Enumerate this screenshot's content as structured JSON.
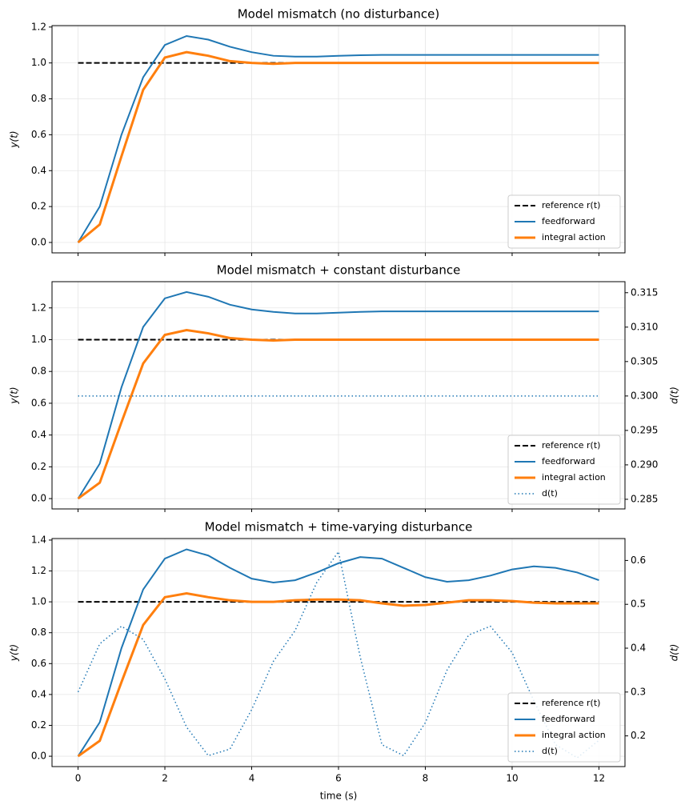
{
  "chart_data": [
    {
      "type": "line",
      "title": "Model mismatch (no disturbance)",
      "ylabel": "y(t)",
      "grid": true,
      "legend": "lower right",
      "x": [
        0,
        0.5,
        1,
        1.5,
        2,
        2.5,
        3,
        3.5,
        4,
        4.5,
        5,
        5.5,
        6,
        6.5,
        7,
        7.5,
        8,
        8.5,
        9,
        9.5,
        10,
        10.5,
        11,
        11.5,
        12
      ],
      "xlim": [
        -0.6,
        12.6
      ],
      "xticks": [
        0,
        2,
        4,
        6,
        8,
        10,
        12
      ],
      "ylim": [
        -0.058,
        1.208
      ],
      "yticks": [
        {
          "value": 0,
          "label": "0.0"
        },
        0.2,
        0.4,
        0.6,
        0.8,
        {
          "value": 1,
          "label": "1.0"
        },
        1.2
      ],
      "series": [
        {
          "name": "reference r(t)",
          "color": "#000000",
          "linestyle": "dashed",
          "linewidth": 2,
          "values": [
            1,
            1,
            1,
            1,
            1,
            1,
            1,
            1,
            1,
            1,
            1,
            1,
            1,
            1,
            1,
            1,
            1,
            1,
            1,
            1,
            1,
            1,
            1,
            1,
            1
          ]
        },
        {
          "name": "feedforward",
          "color": "#1f77b4",
          "linestyle": "solid",
          "linewidth": 2,
          "values": [
            0,
            0.2,
            0.6,
            0.92,
            1.1,
            1.15,
            1.13,
            1.09,
            1.06,
            1.04,
            1.035,
            1.035,
            1.04,
            1.043,
            1.045,
            1.045,
            1.045,
            1.045,
            1.045,
            1.045,
            1.045,
            1.045,
            1.045,
            1.045,
            1.045
          ]
        },
        {
          "name": "integral action",
          "color": "#ff7f0e",
          "linestyle": "solid",
          "linewidth": 3,
          "values": [
            0,
            0.1,
            0.48,
            0.85,
            1.03,
            1.06,
            1.04,
            1.01,
            1.0,
            0.995,
            1,
            1,
            1,
            1,
            1,
            1,
            1,
            1,
            1,
            1,
            1,
            1,
            1,
            1,
            1
          ]
        }
      ]
    },
    {
      "type": "line",
      "title": "Model mismatch + constant disturbance",
      "ylabel": "y(t)",
      "y2label": "d(t)",
      "grid": true,
      "legend": "lower right",
      "x": [
        0,
        0.5,
        1,
        1.5,
        2,
        2.5,
        3,
        3.5,
        4,
        4.5,
        5,
        5.5,
        6,
        6.5,
        7,
        7.5,
        8,
        8.5,
        9,
        9.5,
        10,
        10.5,
        11,
        11.5,
        12
      ],
      "xlim": [
        -0.6,
        12.6
      ],
      "xticks": [
        0,
        2,
        4,
        6,
        8,
        10,
        12
      ],
      "ylim": [
        -0.065,
        1.365
      ],
      "yticks": [
        {
          "value": 0,
          "label": "0.0"
        },
        0.2,
        0.4,
        0.6,
        0.8,
        {
          "value": 1,
          "label": "1.0"
        },
        1.2
      ],
      "y2lim": [
        0.2836,
        0.3166
      ],
      "y2ticks": [
        0.285,
        {
          "value": 0.29,
          "label": "0.290"
        },
        0.295,
        {
          "value": 0.3,
          "label": "0.300"
        },
        0.305,
        {
          "value": 0.31,
          "label": "0.310"
        },
        0.315
      ],
      "series": [
        {
          "name": "reference r(t)",
          "color": "#000000",
          "linestyle": "dashed",
          "linewidth": 2,
          "values": [
            1,
            1,
            1,
            1,
            1,
            1,
            1,
            1,
            1,
            1,
            1,
            1,
            1,
            1,
            1,
            1,
            1,
            1,
            1,
            1,
            1,
            1,
            1,
            1,
            1
          ]
        },
        {
          "name": "feedforward",
          "color": "#1f77b4",
          "linestyle": "solid",
          "linewidth": 2,
          "values": [
            0,
            0.22,
            0.7,
            1.08,
            1.26,
            1.3,
            1.27,
            1.22,
            1.19,
            1.175,
            1.165,
            1.165,
            1.17,
            1.175,
            1.178,
            1.178,
            1.178,
            1.178,
            1.178,
            1.178,
            1.178,
            1.178,
            1.178,
            1.178,
            1.178
          ]
        },
        {
          "name": "integral action",
          "color": "#ff7f0e",
          "linestyle": "solid",
          "linewidth": 3,
          "values": [
            0,
            0.1,
            0.48,
            0.85,
            1.03,
            1.06,
            1.04,
            1.01,
            1.0,
            0.995,
            1,
            1,
            1,
            1,
            1,
            1,
            1,
            1,
            1,
            1,
            1,
            1,
            1,
            1,
            1
          ]
        },
        {
          "name": "d(t)",
          "color": "#1f77b4",
          "linestyle": "dotted",
          "linewidth": 1.5,
          "axis": "y2",
          "values": [
            0.3,
            0.3,
            0.3,
            0.3,
            0.3,
            0.3,
            0.3,
            0.3,
            0.3,
            0.3,
            0.3,
            0.3,
            0.3,
            0.3,
            0.3,
            0.3,
            0.3,
            0.3,
            0.3,
            0.3,
            0.3,
            0.3,
            0.3,
            0.3,
            0.3
          ]
        }
      ]
    },
    {
      "type": "line",
      "title": "Model mismatch + time-varying disturbance",
      "xlabel": "time (s)",
      "ylabel": "y(t)",
      "y2label": "d(t)",
      "grid": true,
      "legend": "lower right",
      "x": [
        0,
        0.5,
        1,
        1.5,
        2,
        2.5,
        3,
        3.5,
        4,
        4.5,
        5,
        5.5,
        6,
        6.5,
        7,
        7.5,
        8,
        8.5,
        9,
        9.5,
        10,
        10.5,
        11,
        11.5,
        12
      ],
      "xlim": [
        -0.6,
        12.6
      ],
      "xticks": [
        0,
        2,
        4,
        6,
        8,
        10,
        12
      ],
      "ylim": [
        -0.067,
        1.41
      ],
      "yticks": [
        {
          "value": 0,
          "label": "0.0"
        },
        0.2,
        0.4,
        0.6,
        0.8,
        {
          "value": 1,
          "label": "1.0"
        },
        1.2,
        1.4
      ],
      "y2lim": [
        0.13,
        0.65
      ],
      "y2ticks": [
        0.2,
        0.3,
        0.4,
        0.5,
        0.6
      ],
      "series": [
        {
          "name": "reference r(t)",
          "color": "#000000",
          "linestyle": "dashed",
          "linewidth": 2,
          "values": [
            1,
            1,
            1,
            1,
            1,
            1,
            1,
            1,
            1,
            1,
            1,
            1,
            1,
            1,
            1,
            1,
            1,
            1,
            1,
            1,
            1,
            1,
            1,
            1,
            1
          ]
        },
        {
          "name": "feedforward",
          "color": "#1f77b4",
          "linestyle": "solid",
          "linewidth": 2,
          "values": [
            0,
            0.22,
            0.7,
            1.08,
            1.28,
            1.34,
            1.3,
            1.22,
            1.15,
            1.125,
            1.14,
            1.19,
            1.25,
            1.29,
            1.28,
            1.22,
            1.16,
            1.13,
            1.14,
            1.17,
            1.21,
            1.23,
            1.22,
            1.19,
            1.14
          ]
        },
        {
          "name": "integral action",
          "color": "#ff7f0e",
          "linestyle": "solid",
          "linewidth": 3,
          "values": [
            0,
            0.1,
            0.48,
            0.85,
            1.03,
            1.055,
            1.03,
            1.01,
            1.0,
            1.0,
            1.01,
            1.015,
            1.015,
            1.01,
            0.99,
            0.975,
            0.98,
            0.995,
            1.01,
            1.01,
            1.005,
            0.995,
            0.99,
            0.99,
            0.99
          ]
        },
        {
          "name": "d(t)",
          "color": "#1f77b4",
          "linestyle": "dotted",
          "linewidth": 1.5,
          "axis": "y2",
          "values": [
            0.3,
            0.41,
            0.45,
            0.42,
            0.33,
            0.22,
            0.155,
            0.17,
            0.26,
            0.37,
            0.44,
            0.55,
            0.62,
            0.38,
            0.18,
            0.155,
            0.23,
            0.35,
            0.43,
            0.45,
            0.39,
            0.28,
            0.18,
            0.15,
            0.19
          ]
        }
      ]
    }
  ]
}
